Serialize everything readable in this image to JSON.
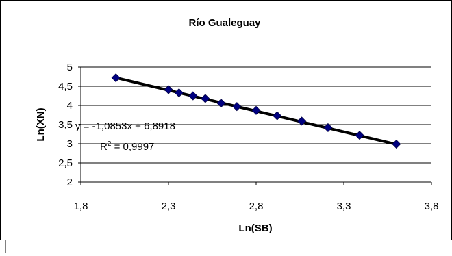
{
  "chart_data": {
    "type": "scatter",
    "title": "Río Gualeguay",
    "xlabel": "Ln(SB)",
    "ylabel": "Ln(XN)",
    "xlim": [
      1.8,
      3.8
    ],
    "ylim": [
      2,
      5
    ],
    "x_ticks": [
      "1,8",
      "2,3",
      "2,8",
      "3,3",
      "3,8"
    ],
    "y_ticks": [
      "2",
      "2,5",
      "3",
      "3,5",
      "4",
      "4,5",
      "5"
    ],
    "grid": "horizontal",
    "legend": "none",
    "series": [
      {
        "x": [
          2.0,
          2.3,
          2.36,
          2.44,
          2.51,
          2.6,
          2.69,
          2.8,
          2.92,
          3.06,
          3.21,
          3.39,
          3.6
        ],
        "y": [
          4.72,
          4.41,
          4.33,
          4.25,
          4.18,
          4.06,
          3.97,
          3.87,
          3.73,
          3.59,
          3.42,
          3.22,
          2.99
        ],
        "marker": "diamond",
        "color": "#000080"
      }
    ],
    "trendline": {
      "slope": -1.0853,
      "intercept": 6.8918,
      "x_range": [
        2.0,
        3.6
      ],
      "color": "#000000",
      "equation_label": "y = -1,0853x + 6,8918",
      "r2_label": "R",
      "r2_sup": "2",
      "r2_value": " = 0,9997"
    }
  }
}
